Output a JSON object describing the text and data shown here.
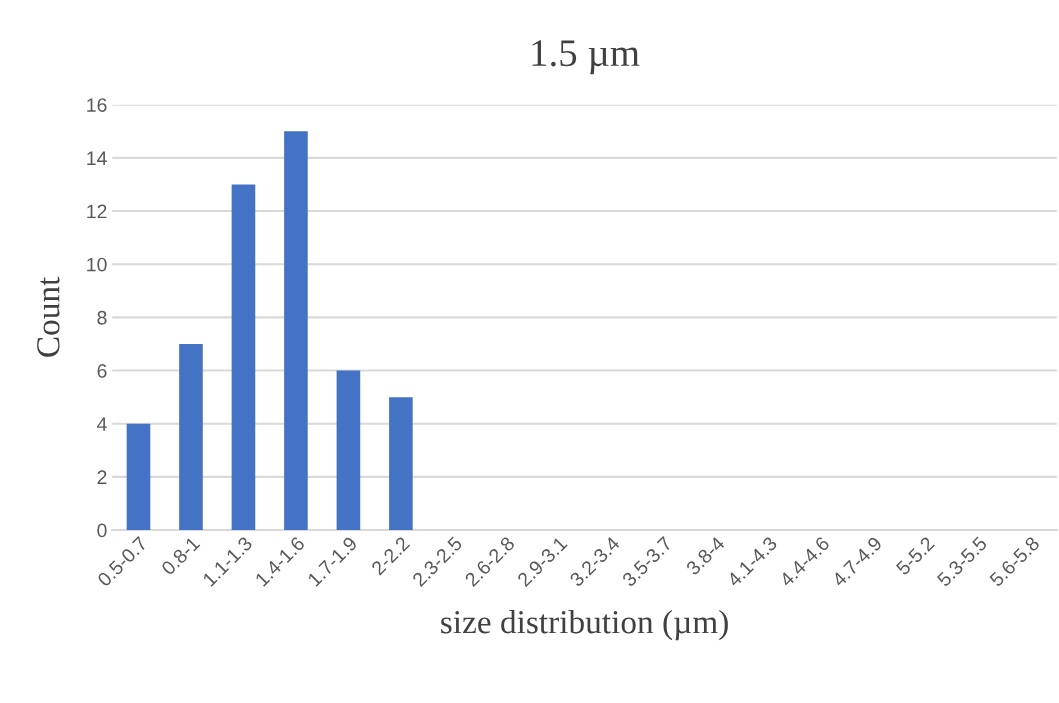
{
  "chart_data": {
    "type": "bar",
    "title": "1.5 µm",
    "xlabel": "size distribution (µm)",
    "ylabel": "Count",
    "categories": [
      "0.5-0.7",
      "0.8-1",
      "1.1-1.3",
      "1.4-1.6",
      "1.7-1.9",
      "2-2.2",
      "2.3-2.5",
      "2.6-2.8",
      "2.9-3.1",
      "3.2-3.4",
      "3.5-3.7",
      "3.8-4",
      "4.1-4.3",
      "4.4-4.6",
      "4.7-4.9",
      "5-5.2",
      "5.3-5.5",
      "5.6-5.8"
    ],
    "values": [
      4,
      7,
      13,
      15,
      6,
      5,
      0,
      0,
      0,
      0,
      0,
      0,
      0,
      0,
      0,
      0,
      0,
      0
    ],
    "color": "#4472c4",
    "ylim": [
      0,
      16
    ],
    "yticks": [
      0,
      2,
      4,
      6,
      8,
      10,
      12,
      14,
      16
    ],
    "grid": "y",
    "legend": false
  }
}
